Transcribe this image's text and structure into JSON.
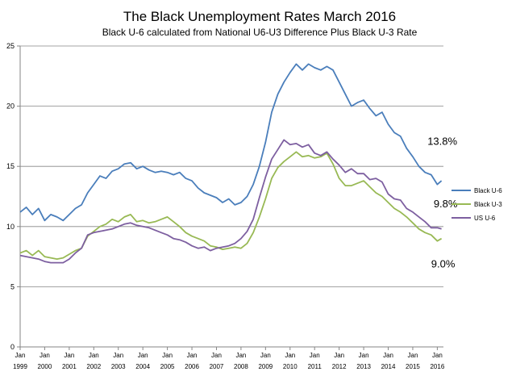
{
  "chart_data": {
    "type": "line",
    "title": "The Black Unemployment Rates March 2016",
    "subtitle": "Black U-6  calculated from National U6-U3 Difference Plus Black U-3 Rate",
    "xlabel": "",
    "ylabel": "",
    "ylim": [
      0,
      25
    ],
    "xlim": [
      1999.0,
      2016.25
    ],
    "y_ticks": [
      "0",
      "5",
      "10",
      "15",
      "20",
      "25"
    ],
    "x_ticks": [
      {
        "top": "Jan",
        "bottom": "1999",
        "x": 1999
      },
      {
        "top": "Jan",
        "bottom": "2000",
        "x": 2000
      },
      {
        "top": "Jan",
        "bottom": "2001",
        "x": 2001
      },
      {
        "top": "Jan",
        "bottom": "2002",
        "x": 2002
      },
      {
        "top": "Jan",
        "bottom": "2003",
        "x": 2003
      },
      {
        "top": "Jan",
        "bottom": "2004",
        "x": 2004
      },
      {
        "top": "Jan",
        "bottom": "2005",
        "x": 2005
      },
      {
        "top": "Jan",
        "bottom": "2006",
        "x": 2006
      },
      {
        "top": "Jan",
        "bottom": "2007",
        "x": 2007
      },
      {
        "top": "Jan",
        "bottom": "2008",
        "x": 2008
      },
      {
        "top": "Jan",
        "bottom": "2009",
        "x": 2009
      },
      {
        "top": "Jan",
        "bottom": "2010",
        "x": 2010
      },
      {
        "top": "Jan",
        "bottom": "2011",
        "x": 2011
      },
      {
        "top": "Jan",
        "bottom": "2012",
        "x": 2012
      },
      {
        "top": "Jan",
        "bottom": "2013",
        "x": 2013
      },
      {
        "top": "Jan",
        "bottom": "2014",
        "x": 2014
      },
      {
        "top": "Jan",
        "bottom": "2015",
        "x": 2015
      },
      {
        "top": "Jan",
        "bottom": "2016",
        "x": 2016
      }
    ],
    "grid": "horizontal",
    "legend_position": "right",
    "series": [
      {
        "name": "Black U-6",
        "color": "#4a7ebb",
        "points": [
          [
            1999.0,
            11.2
          ],
          [
            1999.25,
            11.6
          ],
          [
            1999.5,
            11.0
          ],
          [
            1999.75,
            11.5
          ],
          [
            2000.0,
            10.5
          ],
          [
            2000.25,
            11.0
          ],
          [
            2000.5,
            10.8
          ],
          [
            2000.75,
            10.5
          ],
          [
            2001.0,
            11.0
          ],
          [
            2001.25,
            11.5
          ],
          [
            2001.5,
            11.8
          ],
          [
            2001.75,
            12.8
          ],
          [
            2002.0,
            13.5
          ],
          [
            2002.25,
            14.2
          ],
          [
            2002.5,
            14.0
          ],
          [
            2002.75,
            14.6
          ],
          [
            2003.0,
            14.8
          ],
          [
            2003.25,
            15.2
          ],
          [
            2003.5,
            15.3
          ],
          [
            2003.75,
            14.8
          ],
          [
            2004.0,
            15.0
          ],
          [
            2004.25,
            14.7
          ],
          [
            2004.5,
            14.5
          ],
          [
            2004.75,
            14.6
          ],
          [
            2005.0,
            14.5
          ],
          [
            2005.25,
            14.3
          ],
          [
            2005.5,
            14.5
          ],
          [
            2005.75,
            14.0
          ],
          [
            2006.0,
            13.8
          ],
          [
            2006.25,
            13.2
          ],
          [
            2006.5,
            12.8
          ],
          [
            2006.75,
            12.6
          ],
          [
            2007.0,
            12.4
          ],
          [
            2007.25,
            12.0
          ],
          [
            2007.5,
            12.3
          ],
          [
            2007.75,
            11.8
          ],
          [
            2008.0,
            12.0
          ],
          [
            2008.25,
            12.5
          ],
          [
            2008.5,
            13.5
          ],
          [
            2008.75,
            15.0
          ],
          [
            2009.0,
            17.0
          ],
          [
            2009.25,
            19.5
          ],
          [
            2009.5,
            21.0
          ],
          [
            2009.75,
            22.0
          ],
          [
            2010.0,
            22.8
          ],
          [
            2010.25,
            23.5
          ],
          [
            2010.5,
            23.0
          ],
          [
            2010.75,
            23.5
          ],
          [
            2011.0,
            23.2
          ],
          [
            2011.25,
            23.0
          ],
          [
            2011.5,
            23.3
          ],
          [
            2011.75,
            23.0
          ],
          [
            2012.0,
            22.0
          ],
          [
            2012.25,
            21.0
          ],
          [
            2012.5,
            20.0
          ],
          [
            2012.75,
            20.3
          ],
          [
            2013.0,
            20.5
          ],
          [
            2013.25,
            19.8
          ],
          [
            2013.5,
            19.2
          ],
          [
            2013.75,
            19.5
          ],
          [
            2014.0,
            18.5
          ],
          [
            2014.25,
            17.8
          ],
          [
            2014.5,
            17.5
          ],
          [
            2014.75,
            16.5
          ],
          [
            2015.0,
            15.8
          ],
          [
            2015.25,
            15.0
          ],
          [
            2015.5,
            14.5
          ],
          [
            2015.75,
            14.3
          ],
          [
            2016.0,
            13.5
          ],
          [
            2016.17,
            13.8
          ]
        ]
      },
      {
        "name": "Black U-3",
        "color": "#98b954",
        "points": [
          [
            1999.0,
            7.8
          ],
          [
            1999.25,
            8.0
          ],
          [
            1999.5,
            7.6
          ],
          [
            1999.75,
            8.0
          ],
          [
            2000.0,
            7.5
          ],
          [
            2000.25,
            7.4
          ],
          [
            2000.5,
            7.3
          ],
          [
            2000.75,
            7.4
          ],
          [
            2001.0,
            7.7
          ],
          [
            2001.25,
            8.0
          ],
          [
            2001.5,
            8.2
          ],
          [
            2001.75,
            9.2
          ],
          [
            2002.0,
            9.6
          ],
          [
            2002.25,
            10.0
          ],
          [
            2002.5,
            10.2
          ],
          [
            2002.75,
            10.6
          ],
          [
            2003.0,
            10.4
          ],
          [
            2003.25,
            10.8
          ],
          [
            2003.5,
            11.0
          ],
          [
            2003.75,
            10.4
          ],
          [
            2004.0,
            10.5
          ],
          [
            2004.25,
            10.3
          ],
          [
            2004.5,
            10.4
          ],
          [
            2004.75,
            10.6
          ],
          [
            2005.0,
            10.8
          ],
          [
            2005.25,
            10.4
          ],
          [
            2005.5,
            10.0
          ],
          [
            2005.75,
            9.5
          ],
          [
            2006.0,
            9.2
          ],
          [
            2006.25,
            9.0
          ],
          [
            2006.5,
            8.8
          ],
          [
            2006.75,
            8.4
          ],
          [
            2007.0,
            8.3
          ],
          [
            2007.25,
            8.1
          ],
          [
            2007.5,
            8.2
          ],
          [
            2007.75,
            8.3
          ],
          [
            2008.0,
            8.2
          ],
          [
            2008.25,
            8.6
          ],
          [
            2008.5,
            9.5
          ],
          [
            2008.75,
            10.8
          ],
          [
            2009.0,
            12.3
          ],
          [
            2009.25,
            14.0
          ],
          [
            2009.5,
            14.9
          ],
          [
            2009.75,
            15.4
          ],
          [
            2010.0,
            15.8
          ],
          [
            2010.25,
            16.2
          ],
          [
            2010.5,
            15.8
          ],
          [
            2010.75,
            15.9
          ],
          [
            2011.0,
            15.7
          ],
          [
            2011.25,
            15.8
          ],
          [
            2011.5,
            16.1
          ],
          [
            2011.75,
            15.2
          ],
          [
            2012.0,
            14.0
          ],
          [
            2012.25,
            13.4
          ],
          [
            2012.5,
            13.4
          ],
          [
            2012.75,
            13.6
          ],
          [
            2013.0,
            13.8
          ],
          [
            2013.25,
            13.3
          ],
          [
            2013.5,
            12.8
          ],
          [
            2013.75,
            12.5
          ],
          [
            2014.0,
            12.0
          ],
          [
            2014.25,
            11.5
          ],
          [
            2014.5,
            11.2
          ],
          [
            2014.75,
            10.8
          ],
          [
            2015.0,
            10.3
          ],
          [
            2015.25,
            9.8
          ],
          [
            2015.5,
            9.5
          ],
          [
            2015.75,
            9.3
          ],
          [
            2016.0,
            8.8
          ],
          [
            2016.17,
            9.0
          ]
        ]
      },
      {
        "name": "US U-6",
        "color": "#7d5fa0",
        "points": [
          [
            1999.0,
            7.6
          ],
          [
            1999.25,
            7.5
          ],
          [
            1999.5,
            7.4
          ],
          [
            1999.75,
            7.3
          ],
          [
            2000.0,
            7.1
          ],
          [
            2000.25,
            7.0
          ],
          [
            2000.5,
            7.0
          ],
          [
            2000.75,
            7.0
          ],
          [
            2001.0,
            7.3
          ],
          [
            2001.25,
            7.8
          ],
          [
            2001.5,
            8.2
          ],
          [
            2001.75,
            9.3
          ],
          [
            2002.0,
            9.5
          ],
          [
            2002.25,
            9.6
          ],
          [
            2002.5,
            9.7
          ],
          [
            2002.75,
            9.8
          ],
          [
            2003.0,
            10.0
          ],
          [
            2003.25,
            10.2
          ],
          [
            2003.5,
            10.3
          ],
          [
            2003.75,
            10.1
          ],
          [
            2004.0,
            10.0
          ],
          [
            2004.25,
            9.9
          ],
          [
            2004.5,
            9.7
          ],
          [
            2004.75,
            9.5
          ],
          [
            2005.0,
            9.3
          ],
          [
            2005.25,
            9.0
          ],
          [
            2005.5,
            8.9
          ],
          [
            2005.75,
            8.7
          ],
          [
            2006.0,
            8.4
          ],
          [
            2006.25,
            8.2
          ],
          [
            2006.5,
            8.3
          ],
          [
            2006.75,
            8.0
          ],
          [
            2007.0,
            8.2
          ],
          [
            2007.25,
            8.3
          ],
          [
            2007.5,
            8.4
          ],
          [
            2007.75,
            8.6
          ],
          [
            2008.0,
            9.0
          ],
          [
            2008.25,
            9.6
          ],
          [
            2008.5,
            10.6
          ],
          [
            2008.75,
            12.4
          ],
          [
            2009.0,
            14.1
          ],
          [
            2009.25,
            15.6
          ],
          [
            2009.5,
            16.4
          ],
          [
            2009.75,
            17.2
          ],
          [
            2010.0,
            16.8
          ],
          [
            2010.25,
            16.9
          ],
          [
            2010.5,
            16.6
          ],
          [
            2010.75,
            16.8
          ],
          [
            2011.0,
            16.1
          ],
          [
            2011.25,
            15.9
          ],
          [
            2011.5,
            16.2
          ],
          [
            2011.75,
            15.6
          ],
          [
            2012.0,
            15.1
          ],
          [
            2012.25,
            14.5
          ],
          [
            2012.5,
            14.8
          ],
          [
            2012.75,
            14.4
          ],
          [
            2013.0,
            14.4
          ],
          [
            2013.25,
            13.9
          ],
          [
            2013.5,
            14.0
          ],
          [
            2013.75,
            13.7
          ],
          [
            2014.0,
            12.7
          ],
          [
            2014.25,
            12.3
          ],
          [
            2014.5,
            12.2
          ],
          [
            2014.75,
            11.5
          ],
          [
            2015.0,
            11.2
          ],
          [
            2015.25,
            10.8
          ],
          [
            2015.5,
            10.4
          ],
          [
            2015.75,
            9.9
          ],
          [
            2016.0,
            9.9
          ],
          [
            2016.17,
            9.8
          ]
        ]
      }
    ],
    "annotations": [
      {
        "text": "13.8%",
        "x": 2015.6,
        "y": 16.8
      },
      {
        "text": "9.8%",
        "x": 2015.85,
        "y": 11.6
      },
      {
        "text": "9.0%",
        "x": 2015.75,
        "y": 6.6
      }
    ],
    "axis_color": "#868686",
    "grid_color": "#868686"
  }
}
